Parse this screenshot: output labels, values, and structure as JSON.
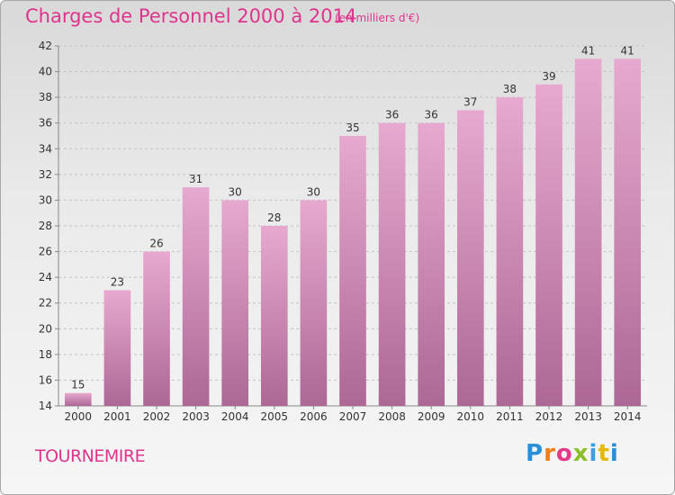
{
  "title": "Charges de Personnel 2000 à 2014",
  "subtitle": "(en milliers d'€)",
  "place": "TOURNEMIRE",
  "logo": "Proxiti",
  "colors": {
    "title": "#e0338c",
    "bar_top": "#e7a9cf",
    "bar_bottom": "#ad6896"
  },
  "chart_data": {
    "type": "bar",
    "categories": [
      "2000",
      "2001",
      "2002",
      "2003",
      "2004",
      "2005",
      "2006",
      "2007",
      "2008",
      "2009",
      "2010",
      "2011",
      "2012",
      "2013",
      "2014"
    ],
    "values": [
      15,
      23,
      26,
      31,
      30,
      28,
      30,
      35,
      36,
      36,
      37,
      38,
      39,
      41,
      41
    ],
    "ylim": [
      14,
      42
    ],
    "yticks": [
      14,
      16,
      18,
      20,
      22,
      24,
      26,
      28,
      30,
      32,
      34,
      36,
      38,
      40,
      42
    ],
    "grid": true,
    "data_labels": true
  }
}
